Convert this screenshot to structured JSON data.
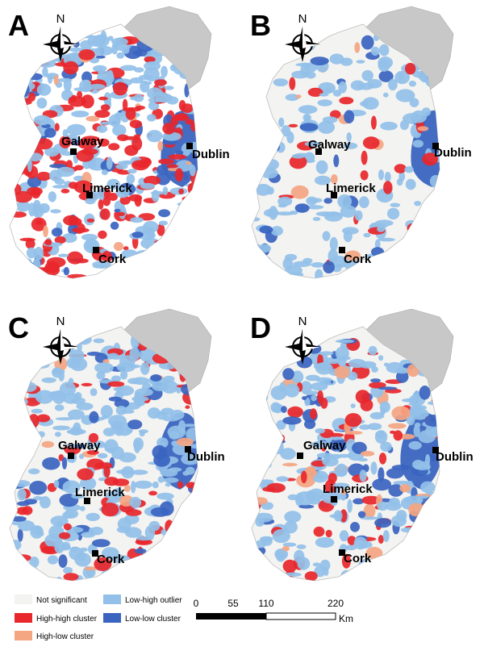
{
  "panels": [
    {
      "letter": "A",
      "pattern": "hot"
    },
    {
      "letter": "B",
      "pattern": "sparse"
    },
    {
      "letter": "C",
      "pattern": "medium"
    },
    {
      "letter": "D",
      "pattern": "medium2"
    }
  ],
  "cities": {
    "galway": "Galway",
    "dublin": "Dublin",
    "limerick": "Limerick",
    "cork": "Cork"
  },
  "north_label": "N",
  "legend": [
    {
      "label": "Not significant",
      "color": "#f3f3f1"
    },
    {
      "label": "High-high cluster",
      "color": "#e8262b"
    },
    {
      "label": "High-low cluster",
      "color": "#f4a582"
    },
    {
      "label": "Low-high outlier",
      "color": "#92c0e8"
    },
    {
      "label": "Low-low cluster",
      "color": "#3a64c0"
    }
  ],
  "scale_bar": {
    "ticks": [
      "0",
      "55",
      "110",
      "220"
    ],
    "unit": "Km"
  },
  "colors": {
    "not_significant": "#f3f3f1",
    "high_high": "#e8262b",
    "high_low": "#f4a582",
    "low_high": "#92c0e8",
    "low_low": "#3a64c0",
    "northern_ireland": "#c8c8c8",
    "border": "#bdbdbd"
  }
}
